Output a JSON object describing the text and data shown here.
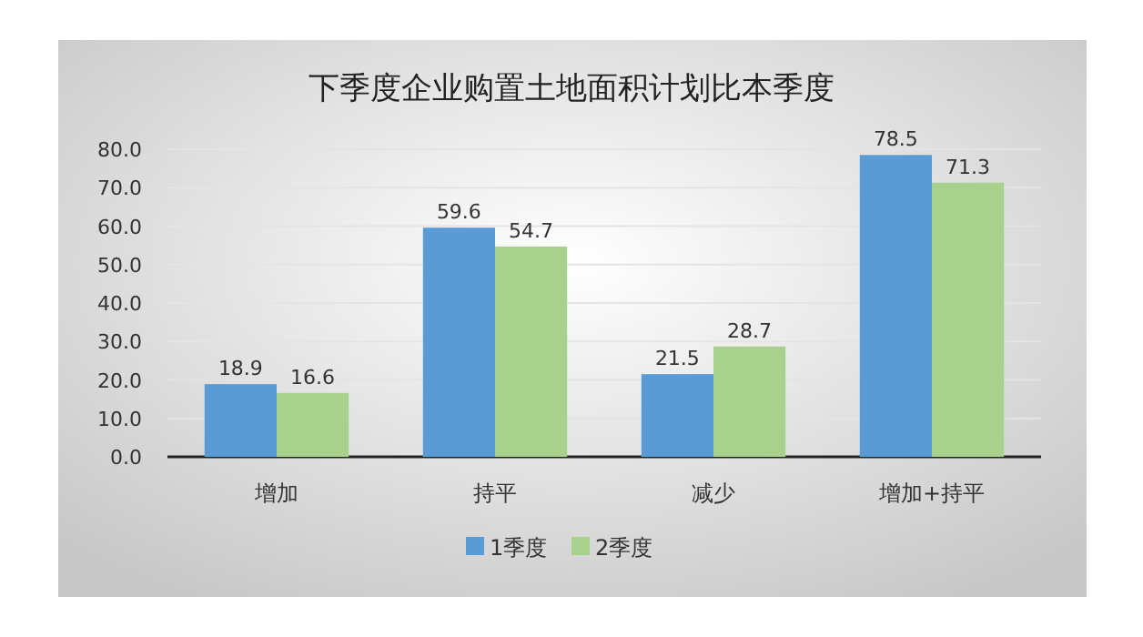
{
  "chart_data": {
    "type": "bar",
    "title": "下季度企业购置土地面积计划比本季度",
    "categories": [
      "增加",
      "持平",
      "减少",
      "增加+持平"
    ],
    "series": [
      {
        "name": "1季度",
        "color": "#5b9bd5",
        "values": [
          18.9,
          59.6,
          21.5,
          78.5
        ]
      },
      {
        "name": "2季度",
        "color": "#a9d18e",
        "values": [
          16.6,
          54.7,
          28.7,
          71.3
        ]
      }
    ],
    "ylim": [
      0,
      80
    ],
    "yticks": [
      {
        "value": 0,
        "label": "0.0"
      },
      {
        "value": 10,
        "label": "10.0"
      },
      {
        "value": 20,
        "label": "20.0"
      },
      {
        "value": 30,
        "label": "30.0"
      },
      {
        "value": 40,
        "label": "40.0"
      },
      {
        "value": 50,
        "label": "50.0"
      },
      {
        "value": 60,
        "label": "60.0"
      },
      {
        "value": 70,
        "label": "70.0"
      },
      {
        "value": 80,
        "label": "80.0"
      }
    ],
    "grid": "y",
    "legend": "bottom",
    "data_labels": true
  }
}
